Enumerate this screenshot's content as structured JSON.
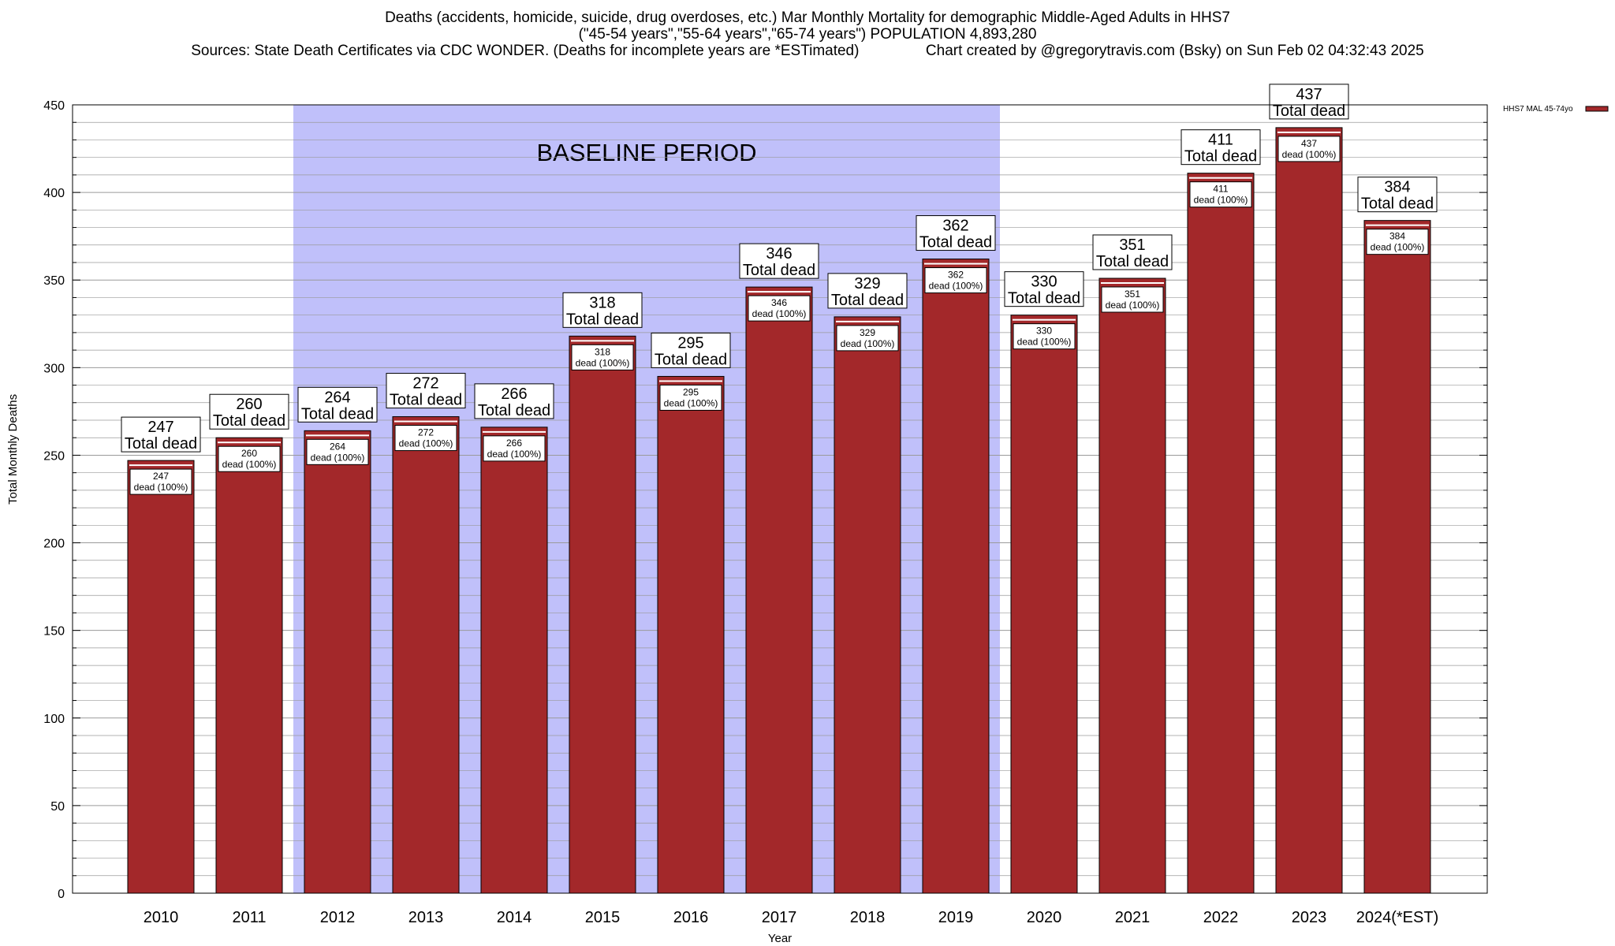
{
  "title_lines": [
    "Deaths (accidents, homicide, suicide, drug overdoses, etc.) Mar Monthly Mortality for demographic Middle-Aged Adults in HHS7",
    "(\"45-54 years\",\"55-64 years\",\"65-74 years\") POPULATION 4,893,280",
    "Sources: State Death Certificates via CDC WONDER. (Deaths for incomplete years are *ESTimated)                Chart created by @gregorytravis.com (Bsky) on Sun Feb 02 04:32:43 2025"
  ],
  "colors": {
    "bar": "#a3282a",
    "baseline_band": "#c0c0fa",
    "grid": "#9a9a9a"
  },
  "chart_data": {
    "type": "bar",
    "categories": [
      "2010",
      "2011",
      "2012",
      "2013",
      "2014",
      "2015",
      "2016",
      "2017",
      "2018",
      "2019",
      "2020",
      "2021",
      "2022",
      "2023",
      "2024(*EST)"
    ],
    "series": [
      {
        "name": "HHS7 MAL 45-74yo",
        "values": [
          247,
          260,
          264,
          272,
          266,
          318,
          295,
          346,
          329,
          362,
          330,
          351,
          411,
          437,
          384
        ]
      }
    ],
    "total_label_suffix": "Total dead",
    "inner_label_suffix": "dead (100%)",
    "xlabel": "Year",
    "ylabel": "Total Monthly Deaths",
    "ylim": [
      0,
      450
    ],
    "yticks": [
      0,
      50,
      100,
      150,
      200,
      250,
      300,
      350,
      400,
      450
    ],
    "grid": true,
    "legend_position": "top-right",
    "annotation": {
      "text": "BASELINE PERIOD",
      "x_start": "2012",
      "x_end": "2019"
    }
  }
}
